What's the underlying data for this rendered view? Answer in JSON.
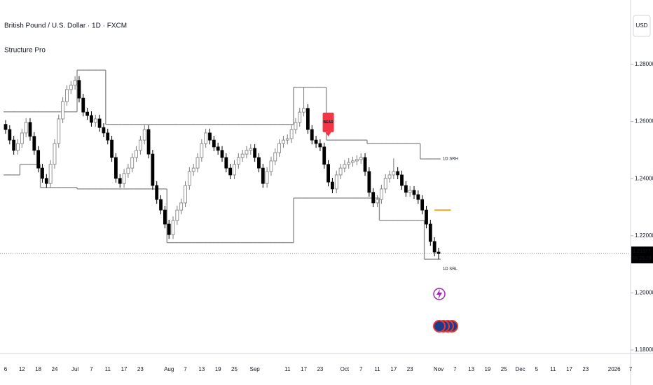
{
  "chart_data": {
    "type": "candlestick",
    "title": "British Pound / U.S. Dollar · 1D · FXCM",
    "indicator": "Structure Pro",
    "currency": "USD",
    "categories": [
      "6",
      null,
      null,
      null,
      "12",
      null,
      null,
      null,
      "18",
      null,
      null,
      null,
      "24",
      null,
      null,
      null,
      null,
      "Jul",
      null,
      null,
      null,
      "7",
      null,
      null,
      null,
      "11",
      null,
      null,
      null,
      "17",
      null,
      null,
      null,
      "23",
      null,
      null,
      null,
      null,
      null,
      null,
      "Aug",
      null,
      null,
      null,
      "7",
      null,
      null,
      null,
      "13",
      null,
      null,
      null,
      "19",
      null,
      null,
      null,
      "25",
      null,
      null,
      null,
      null,
      "Sep",
      null,
      null,
      null,
      null,
      null,
      null,
      null,
      "11",
      null,
      null,
      null,
      "17",
      null,
      null,
      null,
      "23",
      null,
      null,
      null,
      null,
      null,
      "Oct",
      null,
      null,
      null,
      "7",
      null,
      null,
      null,
      "11",
      null,
      null,
      null,
      "17",
      null,
      null,
      null,
      "23",
      null,
      null,
      null,
      null,
      null,
      null,
      "Nov",
      null,
      null,
      null,
      "7",
      null,
      null,
      null,
      "13",
      null,
      null,
      null,
      "19",
      null,
      null,
      null,
      "25",
      null,
      null,
      null,
      "Dec",
      null,
      null,
      null,
      "5",
      null,
      null,
      null,
      "11",
      null,
      null,
      null,
      "17",
      null,
      null,
      null,
      "23",
      null,
      null,
      null,
      null,
      null,
      null,
      "2026",
      null,
      null,
      null,
      "7"
    ],
    "open": [
      1.259,
      1.2572,
      1.2535,
      1.2499,
      1.2523,
      1.256,
      1.2597,
      1.2548,
      1.2499,
      1.2437,
      1.2401,
      1.2383,
      1.245,
      1.2523,
      1.2609,
      1.267,
      1.2712,
      1.2727,
      1.2744,
      1.2682,
      1.2633,
      1.2621,
      1.2597,
      1.2609,
      1.2579,
      1.256,
      1.2535,
      1.2474,
      1.2401,
      1.2383,
      1.2418,
      1.2437,
      1.2474,
      1.2499,
      1.2535,
      1.2572,
      1.2486,
      1.2376,
      1.2327,
      1.229,
      1.2241,
      1.2204,
      1.2253,
      1.229,
      1.2315,
      1.2376,
      1.2425,
      1.2437,
      1.2474,
      1.2523,
      1.256,
      1.2535,
      1.2511,
      1.2499,
      1.2474,
      1.2437,
      1.2413,
      1.245,
      1.2474,
      1.2486,
      1.2499,
      1.2506,
      1.2474,
      1.2437,
      1.2383,
      1.2425,
      1.2462,
      1.2491,
      1.2523,
      1.2535,
      1.254,
      1.2572,
      1.2597,
      1.2633,
      1.2646,
      1.2572,
      1.2535,
      1.2523,
      1.2511,
      1.245,
      1.2388,
      1.2364,
      1.2413,
      1.2437,
      1.245,
      1.2457,
      1.2462,
      1.2467,
      1.2474,
      1.2425,
      1.2352,
      1.2315,
      1.2327,
      1.2364,
      1.2401,
      1.2413,
      1.2425,
      1.2413,
      1.2376,
      1.2352,
      1.2359,
      1.2344,
      1.2327,
      1.229,
      1.2241,
      1.218,
      1.2143,
      null,
      null,
      null,
      null,
      null,
      null,
      null,
      null,
      null,
      null,
      null,
      null,
      null,
      null,
      null,
      null,
      null,
      null,
      null,
      null,
      null,
      null,
      null,
      null,
      null,
      null,
      null,
      null,
      null,
      null,
      null,
      null,
      null,
      null,
      null,
      null,
      null,
      null,
      null,
      null,
      null,
      null,
      null,
      null,
      null,
      null,
      null
    ],
    "high": [
      1.2605,
      1.2587,
      1.255,
      1.2538,
      1.2575,
      1.2612,
      1.2612,
      1.2563,
      1.2514,
      1.2452,
      1.2416,
      1.2465,
      1.2538,
      1.2624,
      1.2685,
      1.2727,
      1.2742,
      1.2759,
      1.2759,
      1.2697,
      1.2648,
      1.2636,
      1.2624,
      1.2624,
      1.2594,
      1.2575,
      1.255,
      1.2489,
      1.2416,
      1.2433,
      1.2452,
      1.2489,
      1.2514,
      1.255,
      1.2587,
      1.2587,
      1.2501,
      1.2391,
      1.2342,
      1.2305,
      1.2256,
      1.2268,
      1.2305,
      1.233,
      1.2391,
      1.244,
      1.2452,
      1.2489,
      1.2538,
      1.2575,
      1.2575,
      1.255,
      1.2526,
      1.2514,
      1.2489,
      1.2452,
      1.2465,
      1.2489,
      1.2501,
      1.2514,
      1.2521,
      1.2521,
      1.2489,
      1.2452,
      1.244,
      1.2477,
      1.2506,
      1.2538,
      1.255,
      1.2555,
      1.2587,
      1.2612,
      1.2648,
      1.272,
      1.2661,
      1.2587,
      1.255,
      1.2538,
      1.2526,
      1.2465,
      1.2403,
      1.2428,
      1.2452,
      1.2465,
      1.2472,
      1.2477,
      1.2482,
      1.2489,
      1.2489,
      1.244,
      1.2367,
      1.2342,
      1.2379,
      1.2416,
      1.2428,
      1.2471,
      1.244,
      1.2428,
      1.2391,
      1.2374,
      1.2374,
      1.2359,
      1.2342,
      1.2305,
      1.2256,
      1.2195,
      1.2158,
      null,
      null,
      null,
      null,
      null,
      null,
      null,
      null,
      null,
      null,
      null,
      null,
      null,
      null,
      null,
      null,
      null,
      null,
      null,
      null,
      null,
      null,
      null,
      null,
      null,
      null,
      null,
      null,
      null,
      null,
      null,
      null,
      null,
      null,
      null,
      null,
      null,
      null,
      null,
      null,
      null,
      null,
      null,
      null,
      null,
      null,
      null
    ],
    "low": [
      1.2557,
      1.252,
      1.2484,
      1.2484,
      1.2508,
      1.2545,
      1.2533,
      1.2484,
      1.2422,
      1.2386,
      1.2368,
      1.2368,
      1.2435,
      1.2508,
      1.2594,
      1.2655,
      1.2697,
      1.2712,
      1.2667,
      1.2618,
      1.2606,
      1.2582,
      1.2582,
      1.2564,
      1.2545,
      1.252,
      1.2459,
      1.2386,
      1.2368,
      1.2368,
      1.2403,
      1.2422,
      1.2459,
      1.2484,
      1.252,
      1.2471,
      1.2361,
      1.2312,
      1.2275,
      1.2226,
      1.2189,
      1.2189,
      1.2238,
      1.2275,
      1.23,
      1.2361,
      1.241,
      1.2422,
      1.2459,
      1.2508,
      1.252,
      1.2496,
      1.2484,
      1.2459,
      1.2422,
      1.2398,
      1.2398,
      1.2435,
      1.2459,
      1.2471,
      1.2484,
      1.2459,
      1.2422,
      1.2368,
      1.2368,
      1.241,
      1.2447,
      1.2476,
      1.2508,
      1.252,
      1.2525,
      1.2557,
      1.2582,
      1.2618,
      1.2557,
      1.252,
      1.2508,
      1.2496,
      1.2435,
      1.2373,
      1.2349,
      1.2349,
      1.2398,
      1.2422,
      1.2435,
      1.2442,
      1.2447,
      1.2452,
      1.241,
      1.2337,
      1.23,
      1.23,
      1.2312,
      1.2349,
      1.2386,
      1.2398,
      1.2398,
      1.2361,
      1.2337,
      1.2337,
      1.2329,
      1.2312,
      1.2275,
      1.2226,
      1.2165,
      1.2128,
      1.2118,
      null,
      null,
      null,
      null,
      null,
      null,
      null,
      null,
      null,
      null,
      null,
      null,
      null,
      null,
      null,
      null,
      null,
      null,
      null,
      null,
      null,
      null,
      null,
      null,
      null,
      null,
      null,
      null,
      null,
      null,
      null,
      null,
      null,
      null,
      null,
      null,
      null,
      null,
      null,
      null,
      null,
      null,
      null,
      null,
      null,
      null,
      null
    ],
    "close": [
      1.2572,
      1.2535,
      1.2499,
      1.2523,
      1.256,
      1.2597,
      1.2548,
      1.2499,
      1.2437,
      1.2401,
      1.2383,
      1.245,
      1.2523,
      1.2609,
      1.267,
      1.2712,
      1.2727,
      1.2744,
      1.2682,
      1.2633,
      1.2621,
      1.2597,
      1.2609,
      1.2579,
      1.256,
      1.2535,
      1.2474,
      1.2401,
      1.2383,
      1.2418,
      1.2437,
      1.2474,
      1.2499,
      1.2535,
      1.2572,
      1.2486,
      1.2376,
      1.2327,
      1.229,
      1.2241,
      1.2204,
      1.2253,
      1.229,
      1.2315,
      1.2376,
      1.2425,
      1.2437,
      1.2474,
      1.2523,
      1.256,
      1.2535,
      1.2511,
      1.2499,
      1.2474,
      1.2437,
      1.2413,
      1.245,
      1.2474,
      1.2486,
      1.2499,
      1.2506,
      1.2474,
      1.2437,
      1.2383,
      1.2425,
      1.2462,
      1.2491,
      1.2523,
      1.2535,
      1.254,
      1.2572,
      1.2597,
      1.2633,
      1.2646,
      1.2572,
      1.2535,
      1.2523,
      1.2511,
      1.245,
      1.2388,
      1.2364,
      1.2413,
      1.2437,
      1.245,
      1.2457,
      1.2462,
      1.2467,
      1.2474,
      1.2425,
      1.2352,
      1.2315,
      1.2327,
      1.2364,
      1.2401,
      1.2413,
      1.2425,
      1.2413,
      1.2376,
      1.2352,
      1.2359,
      1.2344,
      1.2327,
      1.229,
      1.2241,
      1.218,
      1.2143,
      1.21377,
      null,
      null,
      null,
      null,
      null,
      null,
      null,
      null,
      null,
      null,
      null,
      null,
      null,
      null,
      null,
      null,
      null,
      null,
      null,
      null,
      null,
      null,
      null,
      null,
      null,
      null,
      null,
      null,
      null,
      null,
      null,
      null,
      null,
      null,
      null,
      null,
      null,
      null,
      null,
      null,
      null,
      null,
      null,
      null,
      null,
      null,
      null
    ],
    "up_color": "#ffffff",
    "down_color": "#000000",
    "series": [
      {
        "name": "1D SRH",
        "type": "step",
        "color": "#8f8f8f",
        "values": [
          1.2634,
          1.2634,
          1.2634,
          1.2634,
          1.2634,
          1.2634,
          1.2634,
          1.2634,
          1.2634,
          1.2634,
          1.2634,
          1.2634,
          1.2634,
          1.2634,
          1.2634,
          1.2634,
          1.2634,
          1.2634,
          1.278,
          1.278,
          1.278,
          1.278,
          1.278,
          1.278,
          1.278,
          1.259,
          1.259,
          1.259,
          1.259,
          1.259,
          1.259,
          1.259,
          1.259,
          1.259,
          1.259,
          1.259,
          1.259,
          1.259,
          1.259,
          1.259,
          1.259,
          1.259,
          1.259,
          1.259,
          1.259,
          1.259,
          1.259,
          1.259,
          1.259,
          1.259,
          1.259,
          1.259,
          1.259,
          1.259,
          1.259,
          1.259,
          1.259,
          1.259,
          1.259,
          1.259,
          1.259,
          1.259,
          1.259,
          1.259,
          1.259,
          1.259,
          1.259,
          1.259,
          1.259,
          1.259,
          1.259,
          1.272,
          1.272,
          1.272,
          1.272,
          1.272,
          1.272,
          1.272,
          1.272,
          1.2535,
          1.2535,
          1.2535,
          1.2535,
          1.2535,
          1.2535,
          1.2535,
          1.2535,
          1.2535,
          1.2535,
          1.2523,
          1.2523,
          1.2523,
          1.2523,
          1.2523,
          1.2523,
          1.2523,
          1.2523,
          1.2523,
          1.2523,
          1.2523,
          1.2523,
          1.2523,
          1.2469,
          1.2469,
          1.2469,
          1.2469,
          1.2469,
          null,
          null,
          null,
          null,
          null,
          null,
          null,
          null,
          null,
          null,
          null,
          null,
          null,
          null,
          null,
          null,
          null,
          null,
          null,
          null,
          null,
          null,
          null,
          null,
          null,
          null,
          null,
          null,
          null,
          null,
          null,
          null,
          null,
          null,
          null,
          null,
          null,
          null,
          null,
          null,
          null,
          null,
          null,
          null,
          null,
          null,
          null
        ]
      },
      {
        "name": "1D SRL",
        "type": "step",
        "color": "#8f8f8f",
        "values": [
          1.2413,
          1.2413,
          1.2413,
          1.2413,
          1.245,
          1.245,
          1.245,
          1.245,
          1.245,
          1.2369,
          1.2369,
          1.2369,
          1.2369,
          1.2369,
          1.2369,
          1.2369,
          1.2369,
          1.2369,
          1.2364,
          1.2364,
          1.2364,
          1.2364,
          1.2364,
          1.2364,
          1.2364,
          1.2364,
          1.2364,
          1.2364,
          1.2364,
          1.2364,
          1.2364,
          1.2364,
          1.2364,
          1.2364,
          1.2364,
          1.2364,
          1.2364,
          1.2364,
          1.2364,
          1.2364,
          1.2176,
          1.2176,
          1.2176,
          1.2176,
          1.2176,
          1.2176,
          1.2176,
          1.2176,
          1.2176,
          1.2176,
          1.2176,
          1.2176,
          1.2176,
          1.2176,
          1.2176,
          1.2176,
          1.2176,
          1.2176,
          1.2176,
          1.2176,
          1.2176,
          1.2176,
          1.2176,
          1.2176,
          1.2176,
          1.2176,
          1.2176,
          1.2176,
          1.2176,
          1.2176,
          1.2176,
          1.2332,
          1.2332,
          1.2332,
          1.2332,
          1.2332,
          1.2332,
          1.2332,
          1.2332,
          1.2332,
          1.2332,
          1.2332,
          1.2332,
          1.2332,
          1.2332,
          1.2332,
          1.2332,
          1.2332,
          1.2332,
          1.2332,
          1.2332,
          1.2332,
          1.2254,
          1.2254,
          1.2254,
          1.2254,
          1.2254,
          1.2254,
          1.2254,
          1.2254,
          1.2254,
          1.2254,
          1.2254,
          1.2118,
          1.2118,
          1.2118,
          1.2118,
          null,
          null,
          null,
          null,
          null,
          null,
          null,
          null,
          null,
          null,
          null,
          null,
          null,
          null,
          null,
          null,
          null,
          null,
          null,
          null,
          null,
          null,
          null,
          null,
          null,
          null,
          null,
          null,
          null,
          null,
          null,
          null,
          null,
          null,
          null,
          null,
          null,
          null,
          null,
          null,
          null,
          null,
          null,
          null,
          null,
          null,
          null
        ]
      }
    ],
    "annotations": [
      {
        "text": "BEAR",
        "index": 79,
        "value": 1.2548,
        "color": "#f23645"
      }
    ],
    "level": {
      "value": 1.229,
      "color": "#f5a623"
    },
    "last_price": 1.21377,
    "countdown": "05:25:28",
    "ylim": [
      1.17878,
      1.30255
    ],
    "yticks": [
      {
        "value": 1.18,
        "label": "1.18000"
      },
      {
        "value": 1.2,
        "label": "1.20000"
      },
      {
        "value": 1.22,
        "label": "1.22000"
      },
      {
        "value": 1.24,
        "label": "1.24000"
      },
      {
        "value": 1.26,
        "label": "1.26000"
      },
      {
        "value": 1.28,
        "label": "1.28000"
      }
    ]
  }
}
